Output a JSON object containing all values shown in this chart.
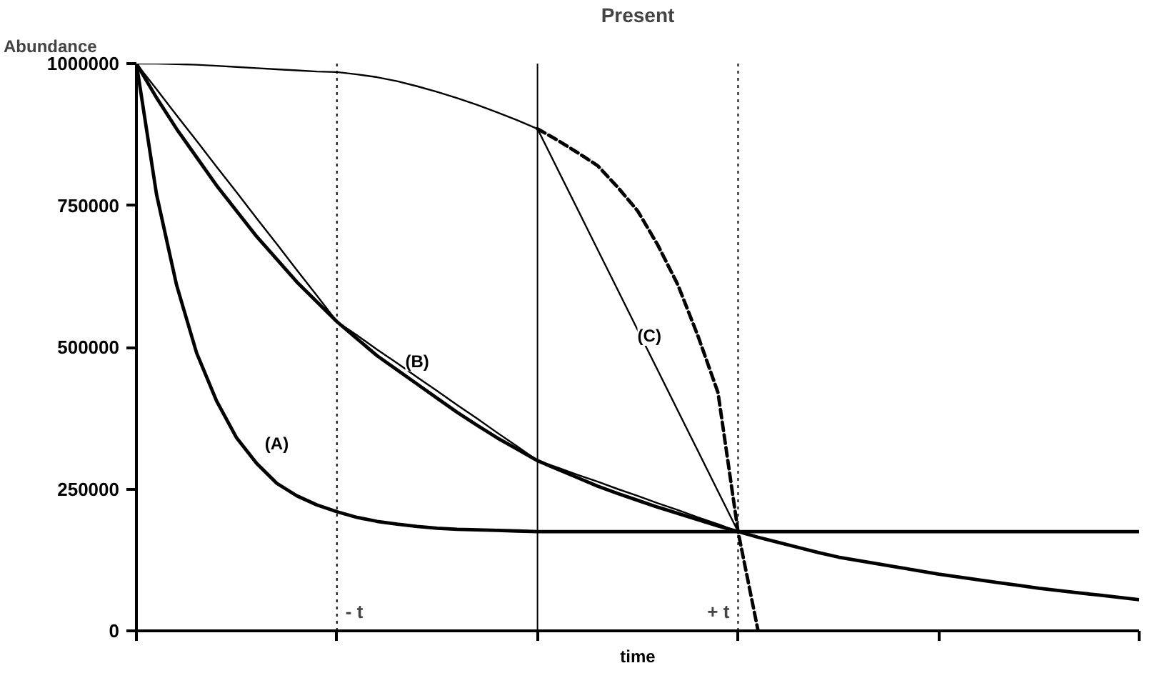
{
  "chart_data": {
    "type": "line",
    "xlabel": "time",
    "ylabel": "Abundance",
    "categories": [
      null,
      null,
      null,
      null,
      null,
      null,
      null,
      null,
      null,
      null,
      null,
      null,
      null,
      null,
      null,
      null,
      null,
      null,
      null,
      null,
      null,
      null,
      null,
      null,
      null,
      null,
      null,
      null,
      null,
      null,
      null,
      null,
      null,
      null,
      null,
      null,
      null,
      null,
      null,
      null,
      null,
      null,
      null,
      null,
      null,
      null,
      null,
      null,
      null,
      null,
      null
    ],
    "ylim": [
      0,
      1000000
    ],
    "yticks": [
      0,
      250000,
      500000,
      750000,
      1000000
    ],
    "grid": false,
    "marker": "none",
    "series": [
      {
        "name": "(A)",
        "color": "#000000",
        "line_style": "solid",
        "values": [
          1000000,
          770000,
          610000,
          490000,
          405000,
          340000,
          295000,
          260000,
          238000,
          222000,
          210000,
          200000,
          193000,
          188000,
          184000,
          181000,
          179000,
          178000,
          177000,
          176000,
          175000,
          175000,
          175000,
          175000,
          175000,
          175000,
          175000,
          175000,
          175000,
          175000,
          175000,
          175000,
          175000,
          175000,
          175000,
          175000,
          175000,
          175000,
          175000,
          175000,
          175000,
          175000,
          175000,
          175000,
          175000,
          175000,
          175000,
          175000,
          175000,
          175000,
          175000
        ]
      },
      {
        "name": "(B)",
        "color": "#000000",
        "line_style": "solid",
        "values": [
          1000000,
          940000,
          885000,
          835000,
          785000,
          740000,
          695000,
          655000,
          615000,
          580000,
          545000,
          515000,
          485000,
          460000,
          435000,
          410000,
          385000,
          362000,
          340000,
          320000,
          300000,
          285000,
          270000,
          255000,
          242000,
          230000,
          218000,
          207000,
          196000,
          185000,
          175000,
          165000,
          156000,
          147000,
          138000,
          130000,
          124000,
          118000,
          112000,
          106000,
          100000,
          95000,
          90000,
          85000,
          80000,
          75000,
          71000,
          67000,
          63000,
          59000,
          55000
        ]
      },
      {
        "color": "#000000",
        "line_style": "solid",
        "values": [
          1000000,
          955000,
          909000,
          864000,
          818000,
          773000,
          727000,
          682000,
          636000,
          591000,
          545000,
          521000,
          496000,
          472000,
          447000,
          423000,
          398000,
          374000,
          349000,
          325000,
          300000,
          288000,
          275000,
          263000,
          250000,
          238000,
          225000,
          213000,
          200000,
          188000,
          175000,
          null,
          null,
          null,
          null,
          null,
          null,
          null,
          null,
          null,
          null,
          null,
          null,
          null,
          null,
          null,
          null,
          null,
          null,
          null,
          null
        ]
      },
      {
        "color": "#000000",
        "line_style": "solid",
        "values": [
          1000000,
          1000000,
          999000,
          998000,
          996000,
          994000,
          992000,
          990000,
          988000,
          986000,
          985000,
          981000,
          976000,
          969000,
          960000,
          950000,
          939000,
          927000,
          914000,
          900000,
          885000,
          null,
          null,
          null,
          null,
          null,
          null,
          null,
          null,
          null,
          null,
          null,
          null,
          null,
          null,
          null,
          null,
          null,
          null,
          null,
          null,
          null,
          null,
          null,
          null,
          null,
          null,
          null,
          null,
          null,
          null
        ]
      },
      {
        "name": "(C)",
        "color": "#000000",
        "line_style": "dashed",
        "values": [
          null,
          null,
          null,
          null,
          null,
          null,
          null,
          null,
          null,
          null,
          null,
          null,
          null,
          null,
          null,
          null,
          null,
          null,
          null,
          null,
          885000,
          865000,
          843000,
          820000,
          782000,
          740000,
          680000,
          610000,
          520000,
          420000,
          175000,
          0,
          null,
          null,
          null,
          null,
          null,
          null,
          null,
          null,
          null,
          null,
          null,
          null,
          null,
          null,
          null,
          null,
          null,
          null,
          null
        ]
      },
      {
        "color": "#000000",
        "line_style": "solid",
        "values": [
          null,
          null,
          null,
          null,
          null,
          null,
          null,
          null,
          null,
          null,
          null,
          null,
          null,
          null,
          null,
          null,
          null,
          null,
          null,
          null,
          885000,
          814000,
          743000,
          672000,
          601000,
          530000,
          459000,
          388000,
          317000,
          246000,
          175000,
          null,
          null,
          null,
          null,
          null,
          null,
          null,
          null,
          null,
          null,
          null,
          null,
          null,
          null,
          null,
          null,
          null,
          null,
          null,
          null
        ]
      }
    ],
    "annotations": [
      "Present",
      "- t",
      "+ t"
    ]
  }
}
